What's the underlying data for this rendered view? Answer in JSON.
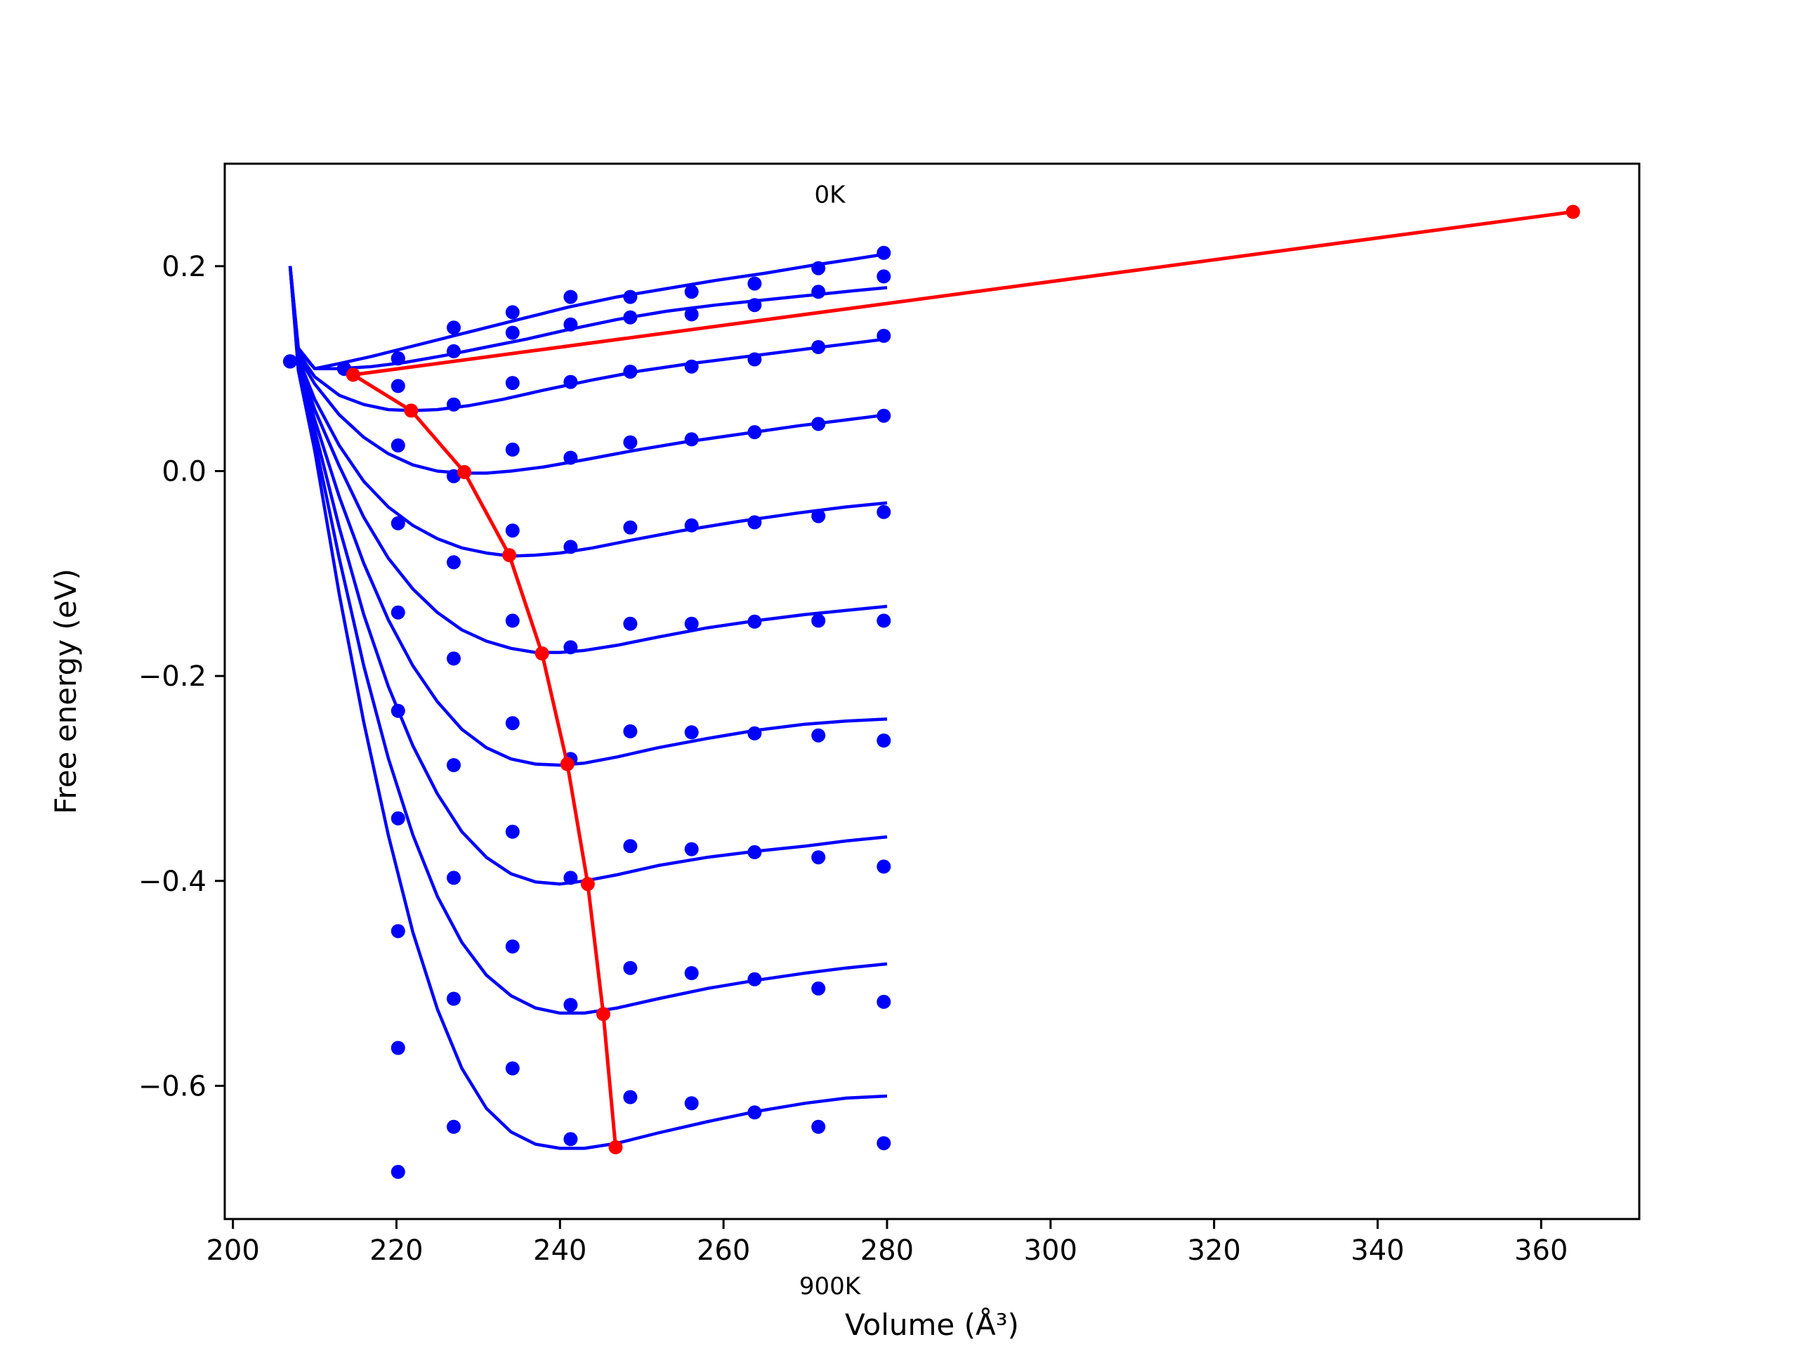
{
  "chart_data": {
    "type": "line",
    "title": "",
    "xlabel": "Volume (Å³)",
    "ylabel": "Free energy (eV)",
    "xlim": [
      199,
      372
    ],
    "ylim": [
      -0.73,
      0.3
    ],
    "x_ticks": [
      200,
      220,
      240,
      260,
      280,
      300,
      320,
      340,
      360
    ],
    "y_ticks": [
      0.2,
      0.0,
      -0.2,
      -0.4,
      -0.6
    ],
    "y_tick_labels": [
      "0.2",
      "0.0",
      "−0.2",
      "−0.4",
      "−0.6"
    ],
    "grid": false,
    "legend": "none",
    "annotations": [
      {
        "text": "0K",
        "x": 273.0,
        "y": 0.27
      },
      {
        "text": "900K",
        "x": 273.0,
        "y": -0.795
      }
    ],
    "colors": {
      "curves": "#0000ff",
      "minimum_line": "#ff0000"
    },
    "volumes": [
      207,
      213.6,
      220.2,
      227.0,
      234.2,
      241.3,
      248.6,
      256.1,
      263.8,
      271.6,
      279.6
    ],
    "data_points": [
      [
        0.107,
        0.1,
        0.11,
        0.14,
        0.155,
        0.17,
        0.17,
        0.175,
        0.183,
        0.198,
        0.213
      ],
      [
        0.107,
        0.1,
        0.11,
        0.117,
        0.135,
        0.143,
        0.15,
        0.153,
        0.162,
        0.175,
        0.19
      ],
      [
        0.107,
        0.1,
        0.083,
        0.065,
        0.086,
        0.087,
        0.097,
        0.102,
        0.109,
        0.121,
        0.132
      ],
      [
        0.107,
        0.1,
        0.025,
        -0.005,
        0.021,
        0.013,
        0.028,
        0.031,
        0.038,
        0.046,
        0.054
      ],
      [
        0.107,
        0.1,
        -0.051,
        -0.089,
        -0.058,
        -0.074,
        -0.055,
        -0.053,
        -0.05,
        -0.044,
        -0.04
      ],
      [
        0.107,
        0.1,
        -0.138,
        -0.183,
        -0.146,
        -0.172,
        -0.149,
        -0.149,
        -0.147,
        -0.146,
        -0.146
      ],
      [
        0.107,
        0.1,
        -0.234,
        -0.287,
        -0.246,
        -0.281,
        -0.254,
        -0.255,
        -0.256,
        -0.258,
        -0.263
      ],
      [
        0.107,
        0.1,
        -0.339,
        -0.397,
        -0.352,
        -0.397,
        -0.366,
        -0.369,
        -0.372,
        -0.377,
        -0.386
      ],
      [
        0.107,
        0.1,
        -0.449,
        -0.515,
        -0.464,
        -0.521,
        -0.485,
        -0.49,
        -0.496,
        -0.505,
        -0.518
      ],
      [
        0.107,
        0.1,
        -0.563,
        -0.64,
        -0.583,
        -0.652,
        -0.611,
        -0.617,
        -0.626,
        -0.64,
        -0.656
      ],
      [
        0.107,
        0.1,
        -0.684,
        null,
        null,
        null,
        null,
        null,
        null,
        null,
        null
      ]
    ],
    "fitted_curves": [
      {
        "x": [
          207.0,
          208.0,
          210.0,
          213.0,
          217.0,
          221.0,
          226.0,
          231.0,
          236.0,
          241.0,
          247.0,
          253.0,
          259.0,
          265.0,
          271.0,
          276.0,
          280.0
        ],
        "y": [
          0.2,
          0.12,
          0.1,
          0.105,
          0.112,
          0.12,
          0.13,
          0.14,
          0.15,
          0.16,
          0.17,
          0.178,
          0.186,
          0.193,
          0.201,
          0.207,
          0.212
        ]
      },
      {
        "x": [
          207.0,
          208.0,
          210.0,
          213.0,
          217.0,
          221.0,
          226.0,
          231.0,
          236.0,
          241.0,
          247.0,
          253.0,
          259.0,
          265.0,
          271.0,
          276.0,
          280.0
        ],
        "y": [
          0.2,
          0.118,
          0.1,
          0.1,
          0.102,
          0.106,
          0.113,
          0.121,
          0.129,
          0.138,
          0.148,
          0.156,
          0.162,
          0.167,
          0.172,
          0.176,
          0.179
        ]
      },
      {
        "x": [
          207.0,
          208.0,
          210.0,
          213.0,
          216.0,
          219.0,
          222.0,
          225.0,
          229.0,
          233.0,
          238.0,
          244.0,
          250.0,
          256.0,
          263.0,
          270.0,
          276.0,
          280.0
        ],
        "y": [
          0.2,
          0.115,
          0.092,
          0.074,
          0.065,
          0.06,
          0.059,
          0.06,
          0.064,
          0.07,
          0.079,
          0.089,
          0.098,
          0.105,
          0.112,
          0.119,
          0.125,
          0.129
        ]
      },
      {
        "x": [
          207.0,
          208.0,
          210.0,
          213.0,
          216.0,
          219.0,
          222.0,
          225.0,
          228.0,
          231.0,
          234.0,
          238.0,
          243.0,
          249.0,
          255.0,
          262.0,
          269.0,
          275.0,
          280.0
        ],
        "y": [
          0.2,
          0.112,
          0.085,
          0.055,
          0.033,
          0.017,
          0.006,
          0.0,
          -0.002,
          -0.002,
          0.0,
          0.004,
          0.011,
          0.02,
          0.028,
          0.036,
          0.044,
          0.05,
          0.055
        ]
      },
      {
        "x": [
          207.0,
          208.0,
          210.0,
          213.0,
          216.0,
          219.0,
          222.0,
          225.0,
          228.0,
          231.0,
          234.0,
          237.0,
          240.0,
          244.0,
          249.0,
          255.0,
          262.0,
          269.0,
          275.0,
          280.0
        ],
        "y": [
          0.2,
          0.11,
          0.07,
          0.025,
          -0.01,
          -0.035,
          -0.053,
          -0.066,
          -0.075,
          -0.08,
          -0.083,
          -0.082,
          -0.08,
          -0.075,
          -0.067,
          -0.058,
          -0.049,
          -0.041,
          -0.035,
          -0.031
        ]
      },
      {
        "x": [
          207.0,
          208.0,
          210.0,
          213.0,
          216.0,
          219.0,
          222.0,
          225.0,
          228.0,
          231.0,
          234.0,
          237.0,
          240.0,
          243.0,
          247.0,
          252.0,
          258.0,
          264.0,
          270.0,
          275.0,
          280.0
        ],
        "y": [
          0.2,
          0.108,
          0.06,
          0.005,
          -0.045,
          -0.085,
          -0.115,
          -0.138,
          -0.155,
          -0.166,
          -0.173,
          -0.177,
          -0.177,
          -0.175,
          -0.17,
          -0.162,
          -0.153,
          -0.146,
          -0.14,
          -0.136,
          -0.132
        ]
      },
      {
        "x": [
          207.0,
          208.0,
          210.0,
          213.0,
          216.0,
          219.0,
          222.0,
          225.0,
          228.0,
          231.0,
          234.0,
          237.0,
          240.0,
          243.0,
          247.0,
          252.0,
          258.0,
          264.0,
          270.0,
          275.0,
          280.0
        ],
        "y": [
          0.2,
          0.105,
          0.05,
          -0.025,
          -0.09,
          -0.145,
          -0.19,
          -0.225,
          -0.252,
          -0.27,
          -0.281,
          -0.286,
          -0.287,
          -0.285,
          -0.279,
          -0.27,
          -0.261,
          -0.253,
          -0.247,
          -0.244,
          -0.242
        ]
      },
      {
        "x": [
          207.0,
          208.0,
          210.0,
          213.0,
          216.0,
          219.0,
          222.0,
          225.0,
          228.0,
          231.0,
          234.0,
          237.0,
          240.0,
          243.0,
          247.0,
          252.0,
          258.0,
          264.0,
          270.0,
          275.0,
          280.0
        ],
        "y": [
          0.2,
          0.103,
          0.04,
          -0.055,
          -0.14,
          -0.21,
          -0.268,
          -0.315,
          -0.352,
          -0.377,
          -0.393,
          -0.401,
          -0.403,
          -0.4,
          -0.394,
          -0.385,
          -0.377,
          -0.371,
          -0.366,
          -0.361,
          -0.357
        ]
      },
      {
        "x": [
          207.0,
          208.0,
          210.0,
          213.0,
          216.0,
          219.0,
          222.0,
          225.0,
          228.0,
          231.0,
          234.0,
          237.0,
          240.0,
          243.0,
          247.0,
          252.0,
          258.0,
          264.0,
          270.0,
          275.0,
          280.0
        ],
        "y": [
          0.2,
          0.1,
          0.03,
          -0.085,
          -0.19,
          -0.28,
          -0.355,
          -0.415,
          -0.46,
          -0.492,
          -0.512,
          -0.524,
          -0.529,
          -0.529,
          -0.524,
          -0.515,
          -0.505,
          -0.497,
          -0.49,
          -0.485,
          -0.481
        ]
      },
      {
        "x": [
          207.0,
          208.0,
          210.0,
          213.0,
          216.0,
          219.0,
          222.0,
          225.0,
          228.0,
          231.0,
          234.0,
          237.0,
          240.0,
          243.0,
          247.0,
          252.0,
          258.0,
          264.0,
          270.0,
          275.0,
          280.0
        ],
        "y": [
          0.2,
          0.098,
          0.02,
          -0.12,
          -0.245,
          -0.355,
          -0.45,
          -0.525,
          -0.583,
          -0.622,
          -0.645,
          -0.657,
          -0.661,
          -0.661,
          -0.656,
          -0.646,
          -0.635,
          -0.625,
          -0.617,
          -0.612,
          -0.61
        ]
      }
    ],
    "minimum_line": {
      "x": [
        363.9,
        214.7,
        221.8,
        228.3,
        233.8,
        237.8,
        240.9,
        243.4,
        245.3,
        246.8
      ],
      "y": [
        0.253,
        0.094,
        0.059,
        -0.001,
        -0.082,
        -0.178,
        -0.286,
        -0.403,
        -0.53,
        -0.66
      ]
    }
  }
}
